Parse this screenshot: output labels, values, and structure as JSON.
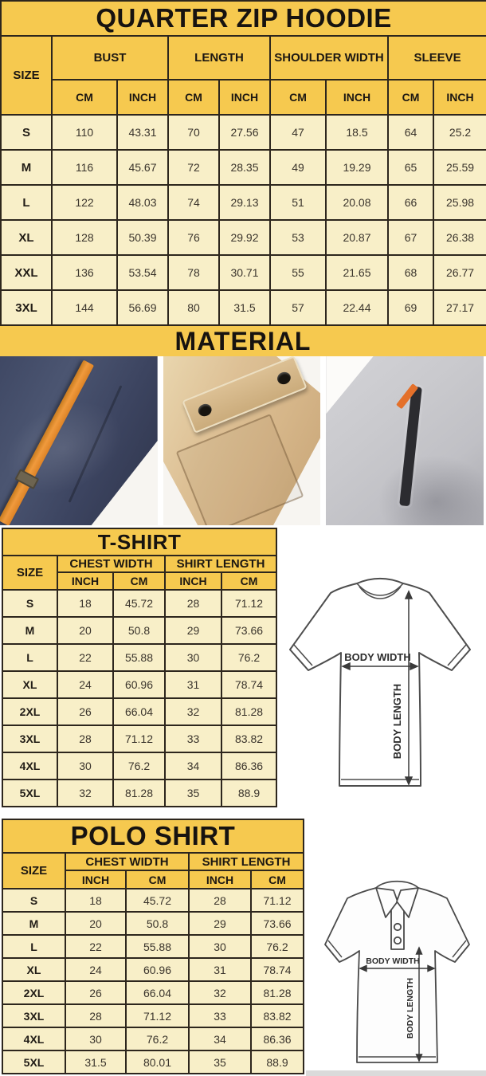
{
  "colors": {
    "header-yellow": "#f6c94f",
    "cell-cream": "#f8efc8",
    "border-dark": "#2d261d",
    "title-text": "#171310",
    "navy-fabric": "#414a66",
    "orange-accent": "#e8882d",
    "khaki-fabric": "#d7b98c",
    "gray-fabric": "#c6c6ca"
  },
  "hoodie_chart": {
    "title": "QUARTER ZIP HOODIE",
    "col_groups": [
      "SIZE",
      "BUST",
      "LENGTH",
      "SHOULDER WIDTH",
      "SLEEVE"
    ],
    "unit_headers": [
      "CM",
      "INCH",
      "CM",
      "INCH",
      "CM",
      "INCH",
      "CM",
      "INCH"
    ],
    "rows": [
      [
        "S",
        "110",
        "43.31",
        "70",
        "27.56",
        "47",
        "18.5",
        "64",
        "25.2"
      ],
      [
        "M",
        "116",
        "45.67",
        "72",
        "28.35",
        "49",
        "19.29",
        "65",
        "25.59"
      ],
      [
        "L",
        "122",
        "48.03",
        "74",
        "29.13",
        "51",
        "20.08",
        "66",
        "25.98"
      ],
      [
        "XL",
        "128",
        "50.39",
        "76",
        "29.92",
        "53",
        "20.87",
        "67",
        "26.38"
      ],
      [
        "XXL",
        "136",
        "53.54",
        "78",
        "30.71",
        "55",
        "21.65",
        "68",
        "26.77"
      ],
      [
        "3XL",
        "144",
        "56.69",
        "80",
        "31.5",
        "57",
        "22.44",
        "69",
        "27.17"
      ]
    ]
  },
  "material": {
    "title": "MATERIAL",
    "photos": [
      "navy-fleece-with-orange-drawstring",
      "khaki-fabric-snap-pocket",
      "gray-fleece-zip-pocket"
    ]
  },
  "tshirt_chart": {
    "title": "T-SHIRT",
    "col_groups": [
      "SIZE",
      "CHEST WIDTH",
      "SHIRT LENGTH"
    ],
    "unit_headers": [
      "INCH",
      "CM",
      "INCH",
      "CM"
    ],
    "rows": [
      [
        "S",
        "18",
        "45.72",
        "28",
        "71.12"
      ],
      [
        "M",
        "20",
        "50.8",
        "29",
        "73.66"
      ],
      [
        "L",
        "22",
        "55.88",
        "30",
        "76.2"
      ],
      [
        "XL",
        "24",
        "60.96",
        "31",
        "78.74"
      ],
      [
        "2XL",
        "26",
        "66.04",
        "32",
        "81.28"
      ],
      [
        "3XL",
        "28",
        "71.12",
        "33",
        "83.82"
      ],
      [
        "4XL",
        "30",
        "76.2",
        "34",
        "86.36"
      ],
      [
        "5XL",
        "32",
        "81.28",
        "35",
        "88.9"
      ]
    ],
    "diagram": {
      "width_label": "BODY WIDTH",
      "length_label": "BODY LENGTH"
    }
  },
  "polo_chart": {
    "title": "POLO SHIRT",
    "col_groups": [
      "SIZE",
      "CHEST WIDTH",
      "SHIRT LENGTH"
    ],
    "unit_headers": [
      "INCH",
      "CM",
      "INCH",
      "CM"
    ],
    "rows": [
      [
        "S",
        "18",
        "45.72",
        "28",
        "71.12"
      ],
      [
        "M",
        "20",
        "50.8",
        "29",
        "73.66"
      ],
      [
        "L",
        "22",
        "55.88",
        "30",
        "76.2"
      ],
      [
        "XL",
        "24",
        "60.96",
        "31",
        "78.74"
      ],
      [
        "2XL",
        "26",
        "66.04",
        "32",
        "81.28"
      ],
      [
        "3XL",
        "28",
        "71.12",
        "33",
        "83.82"
      ],
      [
        "4XL",
        "30",
        "76.2",
        "34",
        "86.36"
      ],
      [
        "5XL",
        "31.5",
        "80.01",
        "35",
        "88.9"
      ]
    ],
    "diagram": {
      "width_label": "BODY WIDTH",
      "length_label": "BODY LENGTH"
    }
  }
}
